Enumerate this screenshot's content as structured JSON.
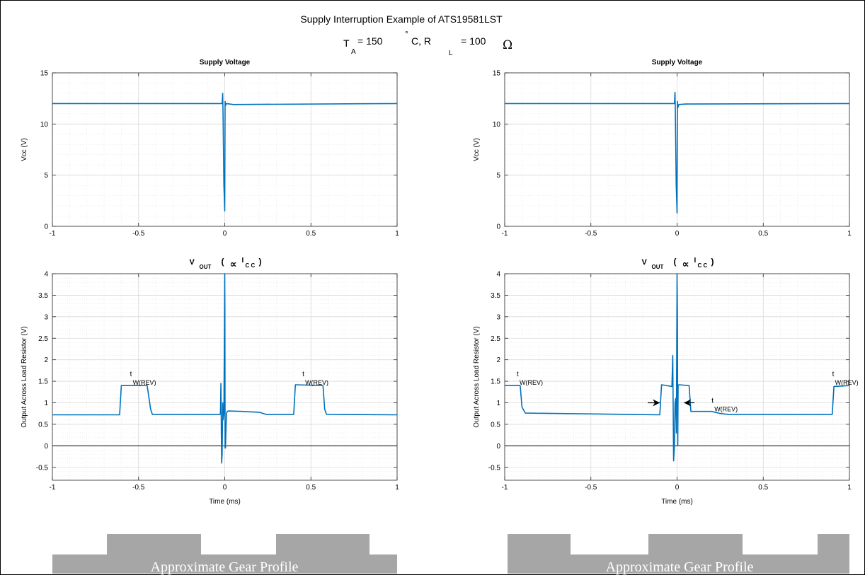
{
  "figure": {
    "title": "Supply Interruption Example of ATS19581LST",
    "conditions": {
      "t": "T",
      "a": "A",
      "eq1": "= 150",
      "deg": "°",
      "c": "C, R",
      "l": "L",
      "eq2": "= 100",
      "ohm": "Ω"
    }
  },
  "colors": {
    "trace": "#0072BD",
    "gear": "#a6a6a6",
    "axis": "#000000",
    "grid": "#d9d9d9"
  },
  "annotations": {
    "t": "t",
    "wrev": "W(REV)"
  },
  "gear": {
    "label": "Approximate Gear Profile"
  },
  "chart_data": [
    {
      "id": "supply-left",
      "type": "line",
      "title": "Supply Voltage",
      "xlabel": "",
      "ylabel": "Vcc (V)",
      "xlim": [
        -1,
        1
      ],
      "ylim": [
        0,
        15
      ],
      "xticks": [
        -1,
        -0.5,
        0,
        0.5,
        1
      ],
      "xtick_labels": [
        "-1",
        "-0.5",
        "0",
        "0.5",
        "1"
      ],
      "yticks": [
        0,
        5,
        10,
        15
      ],
      "ytick_labels": [
        "0",
        "5",
        "10",
        "15"
      ],
      "grid": true,
      "series": [
        {
          "x": [
            -1,
            -0.015,
            -0.012,
            -0.01,
            -0.005,
            0.0,
            0.002,
            0.004,
            0.01,
            0.05,
            1
          ],
          "y": [
            12.0,
            12.0,
            13.0,
            11.0,
            4.0,
            1.5,
            12.2,
            11.8,
            12.0,
            11.9,
            12.0
          ]
        }
      ]
    },
    {
      "id": "output-left",
      "type": "line",
      "title": "V_OUT (∝ I_CC)",
      "title_parts": {
        "v": "V",
        "out": "OUT",
        "open": "(",
        "prop": "∝",
        "i": "I",
        "cc": "C C",
        "close": ")"
      },
      "xlabel": "Time (ms)",
      "ylabel": "Output Across Load Resistor (V)",
      "xlim": [
        -1,
        1
      ],
      "ylim": [
        -0.8,
        4
      ],
      "xticks": [
        -1,
        -0.5,
        0,
        0.5,
        1
      ],
      "xtick_labels": [
        "-1",
        "-0.5",
        "0",
        "0.5",
        "1"
      ],
      "yticks": [
        -0.5,
        0,
        0.5,
        1,
        1.5,
        2,
        2.5,
        3,
        3.5,
        4
      ],
      "ytick_labels": [
        "-0.5",
        "0",
        "0.5",
        "1",
        "1.5",
        "2",
        "2.5",
        "3",
        "3.5",
        "4"
      ],
      "grid": true,
      "series": [
        {
          "x": [
            -1,
            -0.61,
            -0.6,
            -0.45,
            -0.43,
            -0.42,
            -0.025,
            -0.022,
            -0.018,
            -0.015,
            -0.012,
            -0.01,
            -0.005,
            0.0,
            0.001,
            0.002,
            0.004,
            0.01,
            0.015,
            0.02,
            0.1,
            0.2,
            0.24,
            0.4,
            0.41,
            0.57,
            0.58,
            0.59,
            1
          ],
          "y": [
            0.72,
            0.72,
            1.4,
            1.4,
            0.85,
            0.73,
            0.73,
            1.45,
            -0.4,
            -0.2,
            1.0,
            0.6,
            0.75,
            4.0,
            3.2,
            -0.05,
            -0.05,
            0.75,
            0.8,
            0.81,
            0.8,
            0.78,
            0.73,
            0.73,
            1.42,
            1.4,
            0.85,
            0.73,
            0.72
          ]
        }
      ],
      "annotations": [
        {
          "text": "t W(REV)",
          "x": -0.55,
          "y": 1.62
        },
        {
          "text": "t W(REV)",
          "x": 0.45,
          "y": 1.62
        }
      ],
      "zero_line": 0
    },
    {
      "id": "supply-right",
      "type": "line",
      "title": "Supply Voltage",
      "xlabel": "",
      "ylabel": "Vcc (V)",
      "xlim": [
        -1,
        1
      ],
      "ylim": [
        0,
        15
      ],
      "xticks": [
        -1,
        -0.5,
        0,
        0.5,
        1
      ],
      "xtick_labels": [
        "-1",
        "-0.5",
        "0",
        "0.5",
        "1"
      ],
      "yticks": [
        0,
        5,
        10,
        15
      ],
      "ytick_labels": [
        "0",
        "5",
        "10",
        "15"
      ],
      "grid": true,
      "series": [
        {
          "x": [
            -1,
            -0.015,
            -0.012,
            -0.01,
            -0.005,
            0.0,
            0.002,
            0.004,
            0.01,
            0.05,
            1
          ],
          "y": [
            12.0,
            12.0,
            13.1,
            11.0,
            4.0,
            1.3,
            12.2,
            11.6,
            11.9,
            11.95,
            12.0
          ]
        }
      ]
    },
    {
      "id": "output-right",
      "type": "line",
      "title": "V_OUT (∝ I_CC)",
      "title_parts": {
        "v": "V",
        "out": "OUT",
        "open": "(",
        "prop": "∝",
        "i": "I",
        "cc": "C C",
        "close": ")"
      },
      "xlabel": "Time (ms)",
      "ylabel": "Output Across Load Resistor (V)",
      "xlim": [
        -1,
        1
      ],
      "ylim": [
        -0.8,
        4
      ],
      "xticks": [
        -1,
        -0.5,
        0,
        0.5,
        1
      ],
      "xtick_labels": [
        "-1",
        "-0.5",
        "0",
        "0.5",
        "1"
      ],
      "yticks": [
        -0.5,
        0,
        0.5,
        1,
        1.5,
        2,
        2.5,
        3,
        3.5,
        4
      ],
      "ytick_labels": [
        "-0.5",
        "0",
        "0.5",
        "1",
        "1.5",
        "2",
        "2.5",
        "3",
        "3.5",
        "4"
      ],
      "grid": true,
      "series": [
        {
          "x": [
            -1,
            -0.91,
            -0.9,
            -0.88,
            -0.1,
            -0.09,
            -0.03,
            -0.025,
            -0.02,
            -0.015,
            -0.012,
            -0.008,
            -0.004,
            0.0,
            0.002,
            0.004,
            0.006,
            0.01,
            0.07,
            0.08,
            0.2,
            0.25,
            0.3,
            0.9,
            0.91,
            1
          ],
          "y": [
            1.4,
            1.4,
            0.9,
            0.76,
            0.72,
            1.42,
            1.38,
            2.1,
            -0.35,
            0.0,
            1.0,
            1.1,
            0.3,
            4.0,
            3.0,
            0.0,
            1.4,
            1.42,
            1.4,
            0.8,
            0.8,
            0.75,
            0.73,
            0.73,
            1.38,
            1.4
          ]
        }
      ],
      "annotations": [
        {
          "text": "t W(REV)",
          "x": -0.93,
          "y": 1.62
        },
        {
          "text": "t W(REV)",
          "x": 0.9,
          "y": 1.62
        },
        {
          "text": "t W(REV)",
          "x": 0.2,
          "y": 1.0
        }
      ],
      "arrows": [
        {
          "from": [
            -0.17,
            1.0
          ],
          "to": [
            -0.1,
            1.0
          ]
        },
        {
          "from": [
            0.1,
            1.0
          ],
          "to": [
            0.04,
            1.0
          ]
        }
      ],
      "zero_line": 0
    }
  ]
}
